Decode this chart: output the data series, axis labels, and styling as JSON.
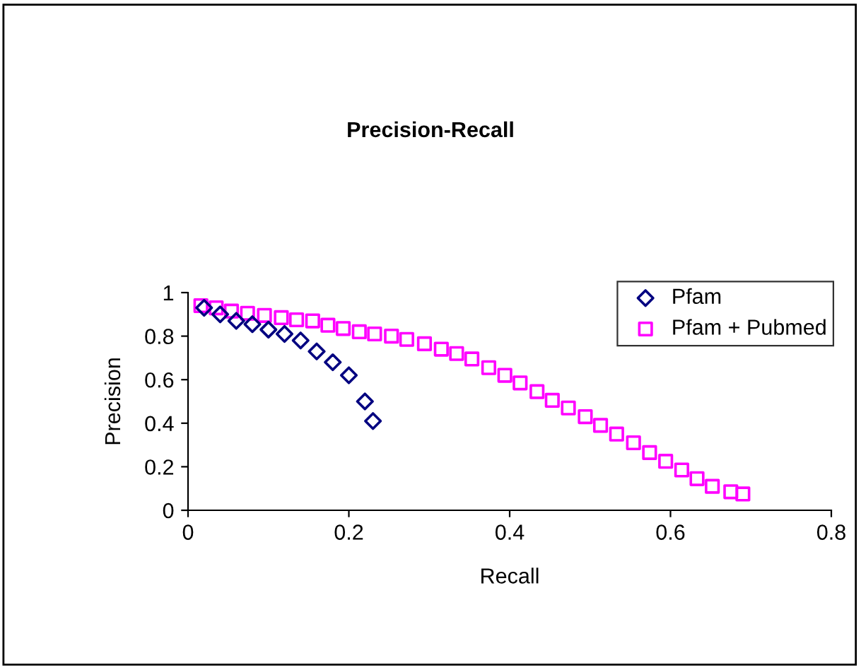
{
  "chart_data": {
    "type": "scatter",
    "title": "Precision-Recall",
    "xlabel": "Recall",
    "ylabel": "Precision",
    "xlim": [
      0,
      0.8
    ],
    "xticks": [
      0,
      0.2,
      0.4,
      0.6,
      0.8
    ],
    "ylim": [
      0,
      1
    ],
    "yticks": [
      0,
      0.2,
      0.4,
      0.6,
      0.8,
      1
    ],
    "grid": false,
    "legend": "top right",
    "series": [
      {
        "name": "Pfam",
        "color": "#000080",
        "marker": "diamond",
        "x": [
          0.02,
          0.04,
          0.06,
          0.08,
          0.1,
          0.12,
          0.14,
          0.16,
          0.18,
          0.2,
          0.22,
          0.23
        ],
        "values": [
          0.93,
          0.9,
          0.87,
          0.855,
          0.83,
          0.81,
          0.78,
          0.73,
          0.68,
          0.62,
          0.5,
          0.41
        ]
      },
      {
        "name": "Pfam + Pubmed",
        "color": "#ff00ff",
        "marker": "square",
        "x": [
          0.016,
          0.035,
          0.054,
          0.074,
          0.095,
          0.116,
          0.135,
          0.155,
          0.174,
          0.193,
          0.213,
          0.232,
          0.253,
          0.272,
          0.294,
          0.315,
          0.334,
          0.353,
          0.374,
          0.394,
          0.413,
          0.434,
          0.453,
          0.473,
          0.494,
          0.513,
          0.533,
          0.554,
          0.574,
          0.594,
          0.614,
          0.633,
          0.652,
          0.675,
          0.69
        ],
        "values": [
          0.94,
          0.93,
          0.915,
          0.905,
          0.895,
          0.885,
          0.875,
          0.87,
          0.85,
          0.835,
          0.82,
          0.81,
          0.8,
          0.785,
          0.765,
          0.74,
          0.72,
          0.695,
          0.655,
          0.62,
          0.585,
          0.545,
          0.505,
          0.47,
          0.43,
          0.39,
          0.35,
          0.31,
          0.265,
          0.225,
          0.185,
          0.145,
          0.11,
          0.085,
          0.075
        ]
      }
    ]
  }
}
